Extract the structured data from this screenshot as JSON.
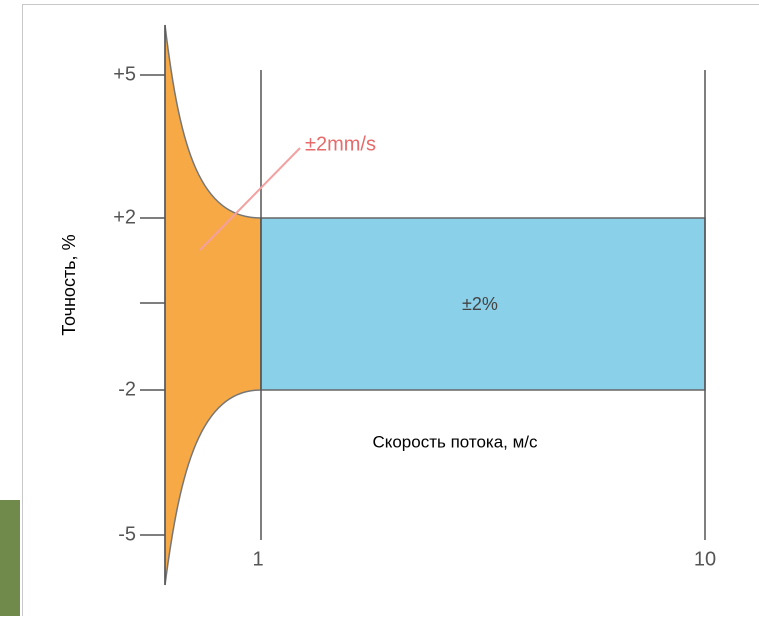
{
  "y_axis": {
    "label": "Точность, %",
    "ticks": [
      "+5",
      "+2",
      "-2",
      "-5"
    ]
  },
  "x_axis": {
    "label": "Скорость потока, м/с",
    "ticks": [
      "1",
      "10"
    ]
  },
  "annotations": {
    "low_flow": "±2mm/s",
    "high_flow": "±2%"
  }
}
